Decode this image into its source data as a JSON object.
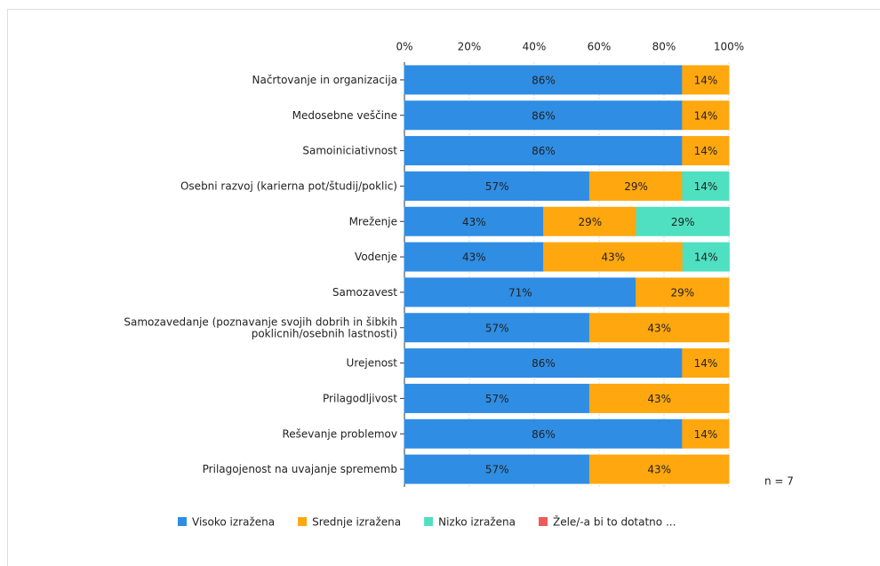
{
  "chart_data": {
    "type": "stacked-barh",
    "categories": [
      "Načrtovanje in organizacija",
      "Medosebne veščine",
      "Samoiniciativnost",
      "Osebni razvoj (karierna pot/študij/poklic)",
      "Mreženje",
      "Vodenje",
      "Samozavest",
      "Samozavedanje (poznavanje svojih dobrih in šibkih\npoklicnih/osebnih lastnosti)",
      "Urejenost",
      "Prilagodljivost",
      "Reševanje problemov",
      "Prilagojenost na uvajanje sprememb"
    ],
    "series": [
      {
        "name": "Visoko izražena",
        "color": "#2f8de4",
        "values": [
          85.7,
          85.7,
          85.7,
          57.1,
          42.9,
          42.9,
          71.4,
          57.1,
          85.7,
          57.1,
          85.7,
          57.1
        ],
        "value_labels": [
          "86%",
          "86%",
          "86%",
          "57%",
          "43%",
          "43%",
          "71%",
          "57%",
          "86%",
          "57%",
          "86%",
          "57%"
        ]
      },
      {
        "name": "Srednje izražena",
        "color": "#ffa70f",
        "values": [
          14.3,
          14.3,
          14.3,
          28.6,
          28.6,
          42.9,
          28.6,
          42.9,
          14.3,
          42.9,
          14.3,
          42.9
        ],
        "value_labels": [
          "14%",
          "14%",
          "14%",
          "29%",
          "29%",
          "43%",
          "29%",
          "43%",
          "14%",
          "43%",
          "14%",
          "43%"
        ]
      },
      {
        "name": "Nizko izražena",
        "color": "#4fe0c1",
        "values": [
          0,
          0,
          0,
          14.3,
          28.6,
          14.3,
          0,
          0,
          0,
          0,
          0,
          0
        ],
        "value_labels": [
          null,
          null,
          null,
          "14%",
          "29%",
          "14%",
          null,
          null,
          null,
          null,
          null,
          null
        ]
      },
      {
        "name": "Žele/-a bi to dotatno ...",
        "color": "#f05a5a",
        "values": [
          0,
          0,
          0,
          0,
          0,
          0,
          0,
          0,
          0,
          0,
          0,
          0
        ]
      }
    ],
    "xlim": [
      0,
      100
    ],
    "xticks": [
      {
        "value": 0,
        "label": "0%"
      },
      {
        "value": 20,
        "label": "20%"
      },
      {
        "value": 40,
        "label": "40%"
      },
      {
        "value": 60,
        "label": "60%"
      },
      {
        "value": 80,
        "label": "80%"
      },
      {
        "value": 100,
        "label": "100%"
      }
    ],
    "grid": true,
    "annotation": "n = 7"
  }
}
